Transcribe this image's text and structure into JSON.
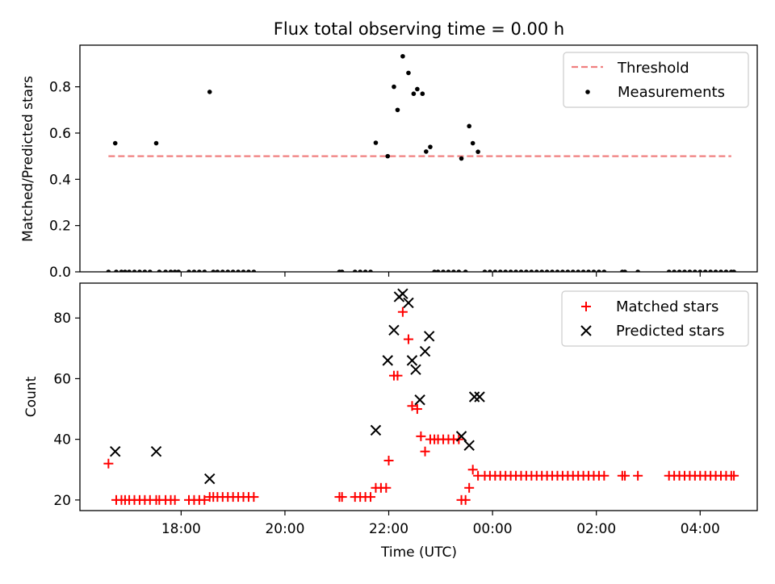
{
  "title": "Flux total observing time = 0.00 h",
  "xaxis": {
    "label": "Time (UTC)",
    "tick_labels": [
      "18:00",
      "20:00",
      "22:00",
      "00:00",
      "02:00",
      "04:00"
    ],
    "tick_hours": [
      18,
      20,
      22,
      24,
      26,
      28
    ],
    "range_hours": [
      16.05,
      29.1
    ]
  },
  "chart_data": [
    {
      "type": "scatter",
      "ylabel": "Matched/Predicted stars",
      "ylim": [
        0,
        0.98
      ],
      "yticks": [
        0.0,
        0.2,
        0.4,
        0.6,
        0.8
      ],
      "ytick_labels": [
        "0.0",
        "0.2",
        "0.4",
        "0.6",
        "0.8"
      ],
      "legend": [
        "Threshold",
        "Measurements"
      ],
      "legend_position": "upper right",
      "threshold": {
        "name": "Threshold",
        "value": 0.5,
        "x_range": [
          16.6,
          28.6
        ],
        "color": "#f08080"
      },
      "measurements": {
        "name": "Measurements",
        "color": "#000000",
        "points": [
          [
            16.73,
            0.556
          ],
          [
            17.52,
            0.556
          ],
          [
            18.55,
            0.778
          ],
          [
            21.75,
            0.558
          ],
          [
            21.98,
            0.5
          ],
          [
            22.1,
            0.8
          ],
          [
            22.17,
            0.7
          ],
          [
            22.27,
            0.932
          ],
          [
            22.38,
            0.86
          ],
          [
            22.48,
            0.77
          ],
          [
            22.55,
            0.79
          ],
          [
            22.65,
            0.77
          ],
          [
            22.72,
            0.52
          ],
          [
            22.8,
            0.54
          ],
          [
            23.4,
            0.49
          ],
          [
            23.55,
            0.63
          ],
          [
            23.62,
            0.556
          ],
          [
            23.72,
            0.519
          ],
          [
            16.6,
            0
          ],
          [
            16.75,
            0
          ],
          [
            16.85,
            0
          ],
          [
            16.92,
            0
          ],
          [
            17.0,
            0
          ],
          [
            17.1,
            0
          ],
          [
            17.2,
            0
          ],
          [
            17.3,
            0
          ],
          [
            17.4,
            0
          ],
          [
            17.58,
            0
          ],
          [
            17.7,
            0
          ],
          [
            17.8,
            0
          ],
          [
            17.88,
            0
          ],
          [
            17.95,
            0
          ],
          [
            18.15,
            0
          ],
          [
            18.25,
            0
          ],
          [
            18.35,
            0
          ],
          [
            18.45,
            0
          ],
          [
            18.62,
            0
          ],
          [
            18.7,
            0
          ],
          [
            18.8,
            0
          ],
          [
            18.9,
            0
          ],
          [
            19.0,
            0
          ],
          [
            19.1,
            0
          ],
          [
            19.2,
            0
          ],
          [
            19.3,
            0
          ],
          [
            19.4,
            0
          ],
          [
            21.05,
            0
          ],
          [
            21.1,
            0
          ],
          [
            21.35,
            0
          ],
          [
            21.45,
            0
          ],
          [
            21.55,
            0
          ],
          [
            21.65,
            0
          ],
          [
            22.88,
            0
          ],
          [
            22.95,
            0
          ],
          [
            23.05,
            0
          ],
          [
            23.15,
            0
          ],
          [
            23.25,
            0
          ],
          [
            23.35,
            0
          ],
          [
            23.48,
            0
          ],
          [
            23.85,
            0
          ],
          [
            23.95,
            0
          ],
          [
            24.05,
            0
          ],
          [
            24.15,
            0
          ],
          [
            24.25,
            0
          ],
          [
            24.35,
            0
          ],
          [
            24.45,
            0
          ],
          [
            24.55,
            0
          ],
          [
            24.65,
            0
          ],
          [
            24.75,
            0
          ],
          [
            24.85,
            0
          ],
          [
            24.95,
            0
          ],
          [
            25.05,
            0
          ],
          [
            25.15,
            0
          ],
          [
            25.25,
            0
          ],
          [
            25.35,
            0
          ],
          [
            25.45,
            0
          ],
          [
            25.55,
            0
          ],
          [
            25.65,
            0
          ],
          [
            25.75,
            0
          ],
          [
            25.85,
            0
          ],
          [
            25.95,
            0
          ],
          [
            26.05,
            0
          ],
          [
            26.15,
            0
          ],
          [
            26.5,
            0
          ],
          [
            26.55,
            0
          ],
          [
            26.8,
            0
          ],
          [
            27.4,
            0
          ],
          [
            27.5,
            0
          ],
          [
            27.6,
            0
          ],
          [
            27.7,
            0
          ],
          [
            27.8,
            0
          ],
          [
            27.9,
            0
          ],
          [
            28.0,
            0
          ],
          [
            28.1,
            0
          ],
          [
            28.2,
            0
          ],
          [
            28.3,
            0
          ],
          [
            28.4,
            0
          ],
          [
            28.5,
            0
          ],
          [
            28.6,
            0
          ],
          [
            28.65,
            0
          ]
        ]
      }
    },
    {
      "type": "scatter",
      "ylabel": "Count",
      "ylim": [
        16.5,
        91.5
      ],
      "yticks": [
        20,
        40,
        60,
        80
      ],
      "ytick_labels": [
        "20",
        "40",
        "60",
        "80"
      ],
      "legend": [
        "Matched stars",
        "Predicted stars"
      ],
      "legend_position": "upper right",
      "series": [
        {
          "name": "Matched stars",
          "marker": "plus",
          "color": "#ff0000",
          "points": [
            [
              16.6,
              32
            ],
            [
              16.75,
              20
            ],
            [
              16.85,
              20
            ],
            [
              16.92,
              20
            ],
            [
              17.0,
              20
            ],
            [
              17.1,
              20
            ],
            [
              17.2,
              20
            ],
            [
              17.3,
              20
            ],
            [
              17.4,
              20
            ],
            [
              17.52,
              20
            ],
            [
              17.58,
              20
            ],
            [
              17.7,
              20
            ],
            [
              17.8,
              20
            ],
            [
              17.88,
              20
            ],
            [
              18.15,
              20
            ],
            [
              18.25,
              20
            ],
            [
              18.35,
              20
            ],
            [
              18.45,
              20
            ],
            [
              18.55,
              21
            ],
            [
              18.62,
              21
            ],
            [
              18.7,
              21
            ],
            [
              18.8,
              21
            ],
            [
              18.9,
              21
            ],
            [
              19.0,
              21
            ],
            [
              19.1,
              21
            ],
            [
              19.2,
              21
            ],
            [
              19.3,
              21
            ],
            [
              19.4,
              21
            ],
            [
              21.05,
              21
            ],
            [
              21.1,
              21
            ],
            [
              21.35,
              21
            ],
            [
              21.45,
              21
            ],
            [
              21.55,
              21
            ],
            [
              21.65,
              21
            ],
            [
              21.75,
              24
            ],
            [
              21.85,
              24
            ],
            [
              21.95,
              24
            ],
            [
              22.0,
              33
            ],
            [
              22.1,
              61
            ],
            [
              22.17,
              61
            ],
            [
              22.27,
              82
            ],
            [
              22.38,
              73
            ],
            [
              22.45,
              51
            ],
            [
              22.55,
              50
            ],
            [
              22.62,
              41
            ],
            [
              22.7,
              36
            ],
            [
              22.8,
              40
            ],
            [
              22.88,
              40
            ],
            [
              22.95,
              40
            ],
            [
              23.05,
              40
            ],
            [
              23.15,
              40
            ],
            [
              23.25,
              40
            ],
            [
              23.35,
              40
            ],
            [
              23.4,
              20
            ],
            [
              23.48,
              20
            ],
            [
              23.55,
              24
            ],
            [
              23.62,
              30
            ],
            [
              23.72,
              28
            ],
            [
              23.85,
              28
            ],
            [
              23.95,
              28
            ],
            [
              24.05,
              28
            ],
            [
              24.15,
              28
            ],
            [
              24.25,
              28
            ],
            [
              24.35,
              28
            ],
            [
              24.45,
              28
            ],
            [
              24.55,
              28
            ],
            [
              24.65,
              28
            ],
            [
              24.75,
              28
            ],
            [
              24.85,
              28
            ],
            [
              24.95,
              28
            ],
            [
              25.05,
              28
            ],
            [
              25.15,
              28
            ],
            [
              25.25,
              28
            ],
            [
              25.35,
              28
            ],
            [
              25.45,
              28
            ],
            [
              25.55,
              28
            ],
            [
              25.65,
              28
            ],
            [
              25.75,
              28
            ],
            [
              25.85,
              28
            ],
            [
              25.95,
              28
            ],
            [
              26.05,
              28
            ],
            [
              26.15,
              28
            ],
            [
              26.5,
              28
            ],
            [
              26.55,
              28
            ],
            [
              26.8,
              28
            ],
            [
              27.4,
              28
            ],
            [
              27.5,
              28
            ],
            [
              27.6,
              28
            ],
            [
              27.7,
              28
            ],
            [
              27.8,
              28
            ],
            [
              27.9,
              28
            ],
            [
              28.0,
              28
            ],
            [
              28.1,
              28
            ],
            [
              28.2,
              28
            ],
            [
              28.3,
              28
            ],
            [
              28.4,
              28
            ],
            [
              28.5,
              28
            ],
            [
              28.6,
              28
            ],
            [
              28.65,
              28
            ]
          ]
        },
        {
          "name": "Predicted stars",
          "marker": "x",
          "color": "#000000",
          "points": [
            [
              16.73,
              36
            ],
            [
              17.52,
              36
            ],
            [
              18.55,
              27
            ],
            [
              21.75,
              43
            ],
            [
              21.98,
              66
            ],
            [
              22.1,
              76
            ],
            [
              22.2,
              87
            ],
            [
              22.27,
              88
            ],
            [
              22.38,
              85
            ],
            [
              22.45,
              66
            ],
            [
              22.52,
              63
            ],
            [
              22.6,
              53
            ],
            [
              22.7,
              69
            ],
            [
              22.78,
              74
            ],
            [
              23.4,
              41
            ],
            [
              23.55,
              38
            ],
            [
              23.65,
              54
            ],
            [
              23.75,
              54
            ]
          ]
        }
      ]
    }
  ]
}
